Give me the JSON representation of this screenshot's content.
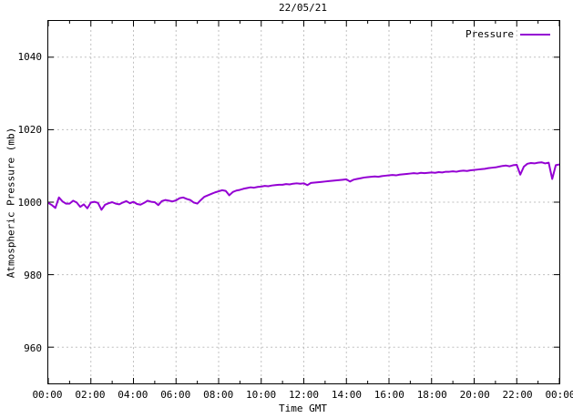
{
  "title": "22/05/21",
  "legend": {
    "label": "Pressure"
  },
  "axes": {
    "x_label": "Time GMT",
    "y_label": "Atmospheric Pressure (mb)"
  },
  "colors": {
    "line": "#9400D3",
    "grid": "#bfbfbf",
    "axis": "#000000",
    "background": "#ffffff",
    "text": "#000000"
  },
  "chart_data": {
    "type": "line",
    "title": "22/05/21",
    "xlabel": "Time GMT",
    "ylabel": "Atmospheric Pressure (mb)",
    "ylim": [
      950,
      1050
    ],
    "xlim_minutes": [
      0,
      1440
    ],
    "grid": true,
    "grid_style": "dashed",
    "legend_position": "top-right-inside",
    "y_ticks": [
      960,
      980,
      1000,
      1020,
      1040
    ],
    "x_major_tick_interval_minutes": 120,
    "x_minor_tick_interval_minutes": 60,
    "x_ticks": [
      {
        "minutes": 0,
        "label": "00:00"
      },
      {
        "minutes": 120,
        "label": "02:00"
      },
      {
        "minutes": 240,
        "label": "04:00"
      },
      {
        "minutes": 360,
        "label": "06:00"
      },
      {
        "minutes": 480,
        "label": "08:00"
      },
      {
        "minutes": 600,
        "label": "10:00"
      },
      {
        "minutes": 720,
        "label": "12:00"
      },
      {
        "minutes": 840,
        "label": "14:00"
      },
      {
        "minutes": 960,
        "label": "16:00"
      },
      {
        "minutes": 1080,
        "label": "18:00"
      },
      {
        "minutes": 1200,
        "label": "20:00"
      },
      {
        "minutes": 1320,
        "label": "22:00"
      },
      {
        "minutes": 1440,
        "label": "00:00"
      }
    ],
    "series": [
      {
        "name": "Pressure",
        "color": "#9400D3",
        "unit": "mb",
        "start_minutes": 0,
        "step_minutes": 10,
        "values": [
          999.8,
          999.2,
          998.4,
          1001.3,
          1000.2,
          999.6,
          999.6,
          1000.4,
          999.9,
          998.7,
          999.4,
          998.3,
          999.9,
          1000.1,
          999.8,
          997.9,
          999.3,
          999.7,
          1000.0,
          999.6,
          999.4,
          999.9,
          1000.3,
          999.7,
          1000.1,
          999.5,
          999.3,
          999.8,
          1000.4,
          1000.1,
          1000.0,
          999.2,
          1000.3,
          1000.6,
          1000.4,
          1000.2,
          1000.5,
          1001.1,
          1001.3,
          1000.9,
          1000.6,
          999.9,
          999.6,
          1000.6,
          1001.5,
          1001.9,
          1002.3,
          1002.7,
          1003.0,
          1003.3,
          1003.1,
          1001.9,
          1002.8,
          1003.2,
          1003.4,
          1003.7,
          1003.9,
          1004.1,
          1004.0,
          1004.2,
          1004.3,
          1004.5,
          1004.4,
          1004.6,
          1004.7,
          1004.8,
          1004.8,
          1005.0,
          1004.9,
          1005.1,
          1005.2,
          1005.1,
          1005.2,
          1004.7,
          1005.3,
          1005.4,
          1005.5,
          1005.6,
          1005.7,
          1005.8,
          1005.9,
          1006.0,
          1006.1,
          1006.2,
          1006.3,
          1005.7,
          1006.2,
          1006.4,
          1006.6,
          1006.8,
          1006.9,
          1007.0,
          1007.1,
          1007.0,
          1007.2,
          1007.3,
          1007.4,
          1007.5,
          1007.4,
          1007.6,
          1007.7,
          1007.8,
          1007.9,
          1008.0,
          1007.9,
          1008.1,
          1008.0,
          1008.1,
          1008.2,
          1008.1,
          1008.3,
          1008.2,
          1008.4,
          1008.4,
          1008.5,
          1008.4,
          1008.6,
          1008.7,
          1008.6,
          1008.8,
          1008.9,
          1009.0,
          1009.1,
          1009.2,
          1009.4,
          1009.5,
          1009.6,
          1009.8,
          1010.0,
          1010.1,
          1009.9,
          1010.2,
          1010.3,
          1007.6,
          1009.8,
          1010.6,
          1010.8,
          1010.7,
          1010.9,
          1011.0,
          1010.7,
          1010.9,
          1006.4,
          1010.2,
          1010.4
        ]
      }
    ]
  }
}
